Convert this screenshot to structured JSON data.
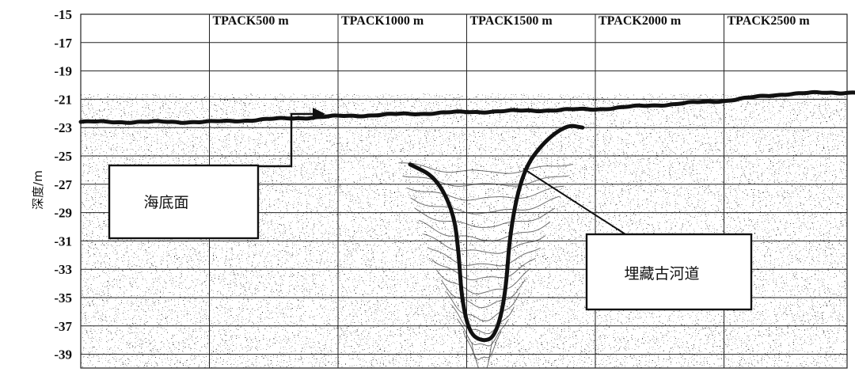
{
  "chart_data": {
    "type": "seismic-profile",
    "ylabel": "深度/m",
    "ylim": [
      -15,
      -40
    ],
    "y_ticks": [
      -15,
      -17,
      -19,
      -21,
      -23,
      -25,
      -27,
      -29,
      -31,
      -33,
      -35,
      -37,
      -39
    ],
    "markers": [
      {
        "label": "TPACK500 m",
        "position_m": 500
      },
      {
        "label": "TPACK1000 m",
        "position_m": 1000
      },
      {
        "label": "TPACK1500 m",
        "position_m": 1500
      },
      {
        "label": "TPACK2000 m",
        "position_m": 2000
      },
      {
        "label": "TPACK2500 m",
        "position_m": 2500
      }
    ],
    "xlim_m": [
      0,
      3030
    ],
    "grid": true,
    "seafloor": {
      "label": "海底面",
      "profile": [
        [
          0,
          -22.6
        ],
        [
          500,
          -22.6
        ],
        [
          1000,
          -22.2
        ],
        [
          1500,
          -21.9
        ],
        [
          2000,
          -21.7
        ],
        [
          2500,
          -21.1
        ],
        [
          2750,
          -20.6
        ],
        [
          3030,
          -20.5
        ]
      ]
    },
    "channel": {
      "label": "埋藏古河道",
      "outline": [
        [
          1280,
          -25.6
        ],
        [
          1380,
          -26.5
        ],
        [
          1450,
          -29.0
        ],
        [
          1470,
          -32.0
        ],
        [
          1480,
          -35.0
        ],
        [
          1510,
          -37.5
        ],
        [
          1560,
          -38.1
        ],
        [
          1610,
          -37.8
        ],
        [
          1650,
          -35.0
        ],
        [
          1670,
          -30.0
        ],
        [
          1720,
          -26.0
        ],
        [
          1800,
          -24.0
        ],
        [
          1890,
          -22.8
        ],
        [
          1950,
          -23.0
        ]
      ]
    }
  }
}
